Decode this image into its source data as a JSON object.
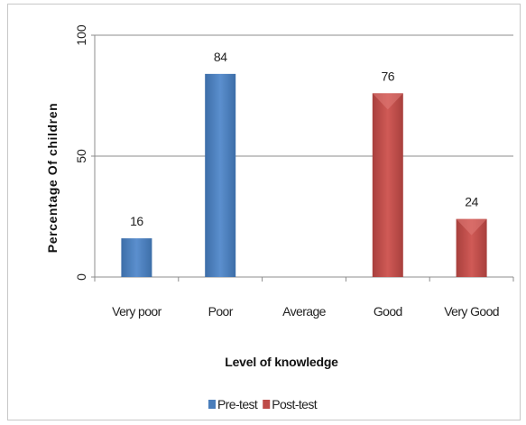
{
  "chart_data": {
    "type": "bar",
    "categories": [
      "Very poor",
      "Poor",
      "Average",
      "Good",
      "Very Good"
    ],
    "series": [
      {
        "name": "Pre-test",
        "values": [
          16,
          84,
          null,
          null,
          null
        ],
        "color": "#4a7ebb"
      },
      {
        "name": "Post-test",
        "values": [
          null,
          null,
          null,
          76,
          24
        ],
        "color": "#be4b48"
      }
    ],
    "data_labels": [
      "16",
      "84",
      "",
      "76",
      "24"
    ],
    "xlabel": "Level of knowledge",
    "ylabel": "Percentage Of children",
    "ylim": [
      0,
      100
    ],
    "yticks": [
      "0",
      "50",
      "100"
    ],
    "grid": true,
    "legend_position": "bottom"
  }
}
